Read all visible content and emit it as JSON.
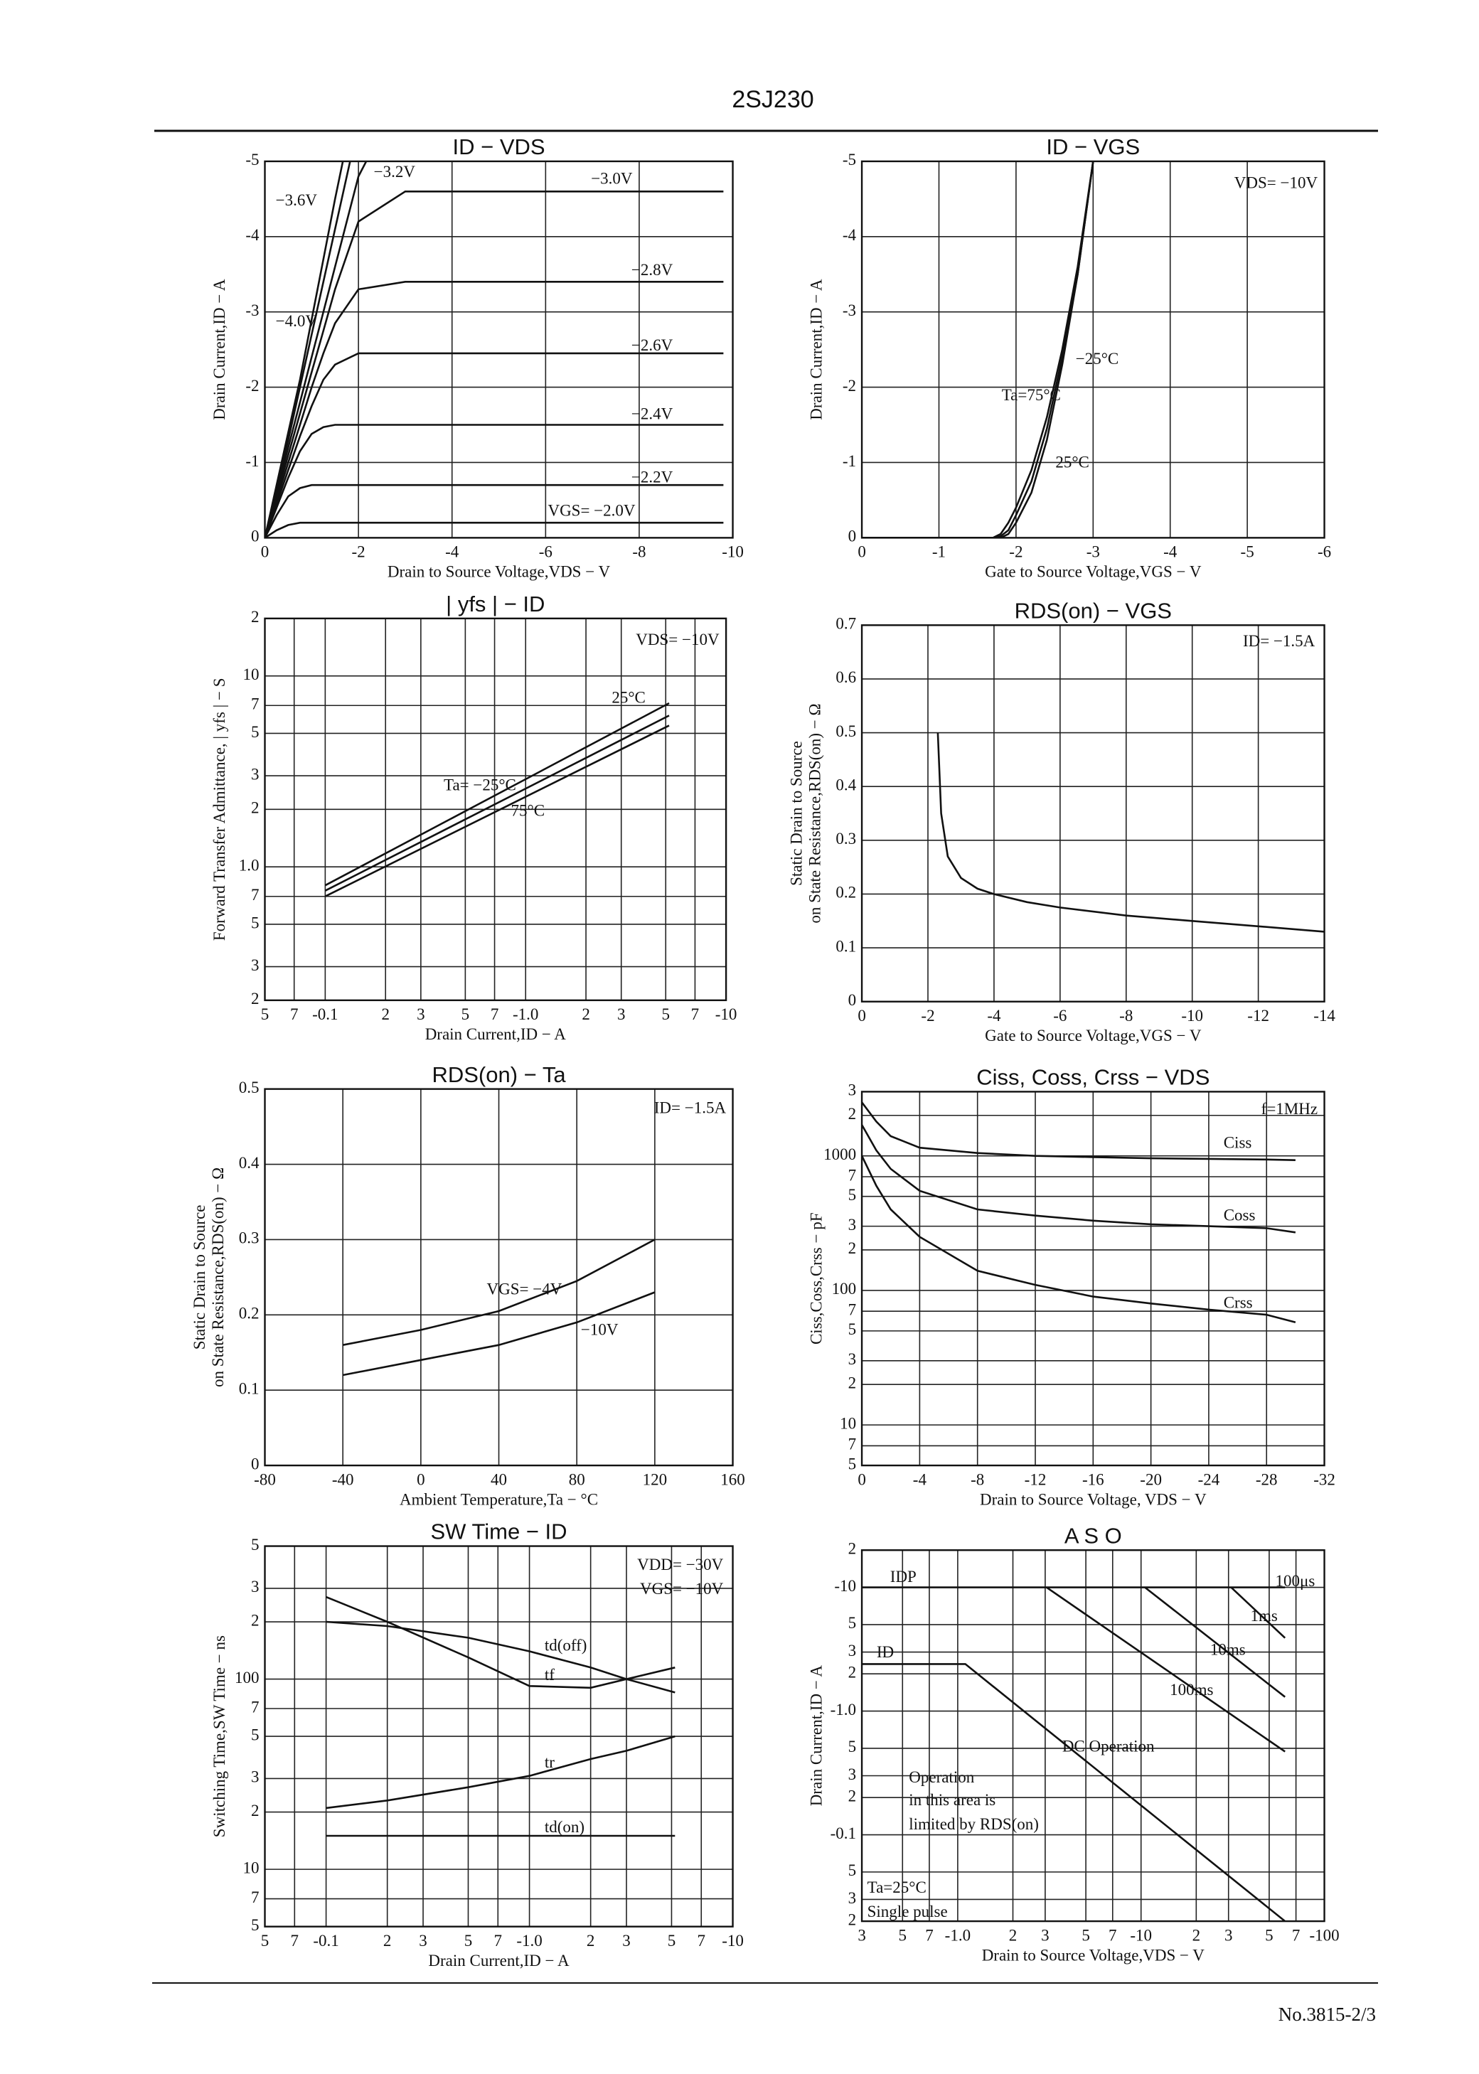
{
  "header": {
    "title": "2SJ230"
  },
  "footer": {
    "text": "No.3815-2/3"
  },
  "chart_data": [
    {
      "type": "line",
      "title": "ID − VDS",
      "xlabel": "Drain to Source Voltage,VDS − V",
      "ylabel": "Drain Current,ID − A",
      "xlim": [
        0,
        -10
      ],
      "ylim": [
        0,
        -5
      ],
      "xticks": [
        0,
        -2,
        -4,
        -6,
        -8,
        -10
      ],
      "yticks": [
        0,
        -1,
        -2,
        -3,
        -4,
        -5
      ],
      "grid": true,
      "x": [
        0,
        -0.25,
        -0.5,
        -0.75,
        -1,
        -1.25,
        -1.5,
        -2,
        -3,
        -4,
        -6,
        -8,
        -9.8
      ],
      "series": [
        {
          "name": "VGS= −2.0V",
          "color": "#111",
          "values": [
            0,
            -0.1,
            -0.17,
            -0.2,
            -0.2,
            -0.2,
            -0.2,
            -0.2,
            -0.2,
            -0.2,
            -0.2,
            -0.2,
            -0.2
          ]
        },
        {
          "name": "−2.2V",
          "color": "#111",
          "values": [
            0,
            -0.3,
            -0.55,
            -0.66,
            -0.7,
            -0.7,
            -0.7,
            -0.7,
            -0.7,
            -0.7,
            -0.7,
            -0.7,
            -0.7
          ]
        },
        {
          "name": "−2.4V",
          "color": "#111",
          "values": [
            0,
            -0.4,
            -0.8,
            -1.15,
            -1.38,
            -1.47,
            -1.5,
            -1.5,
            -1.5,
            -1.5,
            -1.5,
            -1.5,
            -1.5
          ]
        },
        {
          "name": "−2.6V",
          "color": "#111",
          "values": [
            0,
            -0.45,
            -0.9,
            -1.35,
            -1.75,
            -2.1,
            -2.3,
            -2.45,
            -2.45,
            -2.45,
            -2.45,
            -2.45,
            -2.45
          ]
        },
        {
          "name": "−2.8V",
          "color": "#111",
          "values": [
            0,
            -0.5,
            -1,
            -1.5,
            -2,
            -2.45,
            -2.85,
            -3.3,
            -3.4,
            -3.4,
            -3.4,
            -3.4,
            -3.4
          ]
        },
        {
          "name": "−3.0V",
          "color": "#111",
          "values": [
            0,
            -0.55,
            -1.1,
            -1.65,
            -2.2,
            -2.75,
            -3.3,
            -4.2,
            -4.6,
            -4.6,
            -4.6,
            -4.6,
            -4.6
          ]
        },
        {
          "name": "−3.2V",
          "color": "#111",
          "values": [
            0,
            -0.6,
            -1.2,
            -1.8,
            -2.4,
            -3,
            -3.6,
            -4.8,
            -6,
            null,
            null,
            null,
            null
          ]
        },
        {
          "name": "−3.6V",
          "color": "#111",
          "values": [
            0,
            -0.65,
            -1.3,
            -2,
            -2.7,
            -3.4,
            -4.1,
            -5.5,
            null,
            null,
            null,
            null,
            null
          ]
        },
        {
          "name": "−4.0V",
          "color": "#111",
          "values": [
            0,
            -0.7,
            -1.4,
            -2.1,
            -2.9,
            -3.7,
            -4.5,
            -6,
            null,
            null,
            null,
            null,
            null
          ]
        }
      ]
    },
    {
      "type": "line",
      "title": "ID − VGS",
      "xlabel": "Gate to Source Voltage,VGS − V",
      "ylabel": "Drain Current,ID − A",
      "xlim": [
        0,
        -6
      ],
      "ylim": [
        0,
        -5
      ],
      "xticks": [
        0,
        -1,
        -2,
        -3,
        -4,
        -5,
        -6
      ],
      "yticks": [
        0,
        -1,
        -2,
        -3,
        -4,
        -5
      ],
      "grid": true,
      "annotations": [
        "VDS= −10V"
      ],
      "x": [
        0,
        -1,
        -1.7,
        -1.8,
        -1.9,
        -2,
        -2.2,
        -2.4,
        -2.6,
        -2.8,
        -3
      ],
      "series": [
        {
          "name": "Ta=75°C",
          "color": "#111",
          "values": [
            0,
            0,
            0,
            -0.05,
            -0.2,
            -0.4,
            -0.9,
            -1.6,
            -2.5,
            -3.6,
            -5
          ]
        },
        {
          "name": "25°C",
          "color": "#111",
          "values": [
            0,
            0,
            0,
            -0.02,
            -0.1,
            -0.3,
            -0.75,
            -1.45,
            -2.4,
            -3.5,
            -5
          ]
        },
        {
          "name": "−25°C",
          "color": "#111",
          "values": [
            0,
            0,
            0,
            0,
            -0.05,
            -0.2,
            -0.6,
            -1.3,
            -2.3,
            -3.5,
            -5
          ]
        }
      ]
    },
    {
      "type": "line",
      "title": "| yfs | − ID",
      "xlabel": "Drain Current,ID − A",
      "ylabel": "Forward Transfer Admittance, | yfs | − S",
      "xlog": true,
      "ylog": true,
      "xlim": [
        -0.05,
        -10
      ],
      "ylim": [
        0.2,
        20
      ],
      "grid": true,
      "xticks": [
        {
          "value": -0.05,
          "label": "5"
        },
        {
          "value": -0.07,
          "label": "7"
        },
        -0.1,
        {
          "value": -0.2,
          "label": "2"
        },
        {
          "value": -0.3,
          "label": "3"
        },
        {
          "value": -0.5,
          "label": "5"
        },
        {
          "value": -0.7,
          "label": "7"
        },
        {
          "value": -1,
          "label": "-1.0"
        },
        {
          "value": -2,
          "label": "2"
        },
        {
          "value": -3,
          "label": "3"
        },
        {
          "value": -5,
          "label": "5"
        },
        {
          "value": -7,
          "label": "7"
        },
        -10
      ],
      "yticks": [
        {
          "value": 0.2,
          "label": "2"
        },
        {
          "value": 0.3,
          "label": "3"
        },
        {
          "value": 0.5,
          "label": "5"
        },
        {
          "value": 0.7,
          "label": "7"
        },
        {
          "value": 1,
          "label": "1.0"
        },
        2,
        3,
        5,
        7,
        10,
        {
          "value": 20,
          "label": "2"
        }
      ],
      "annotations": [
        "VDS= −10V"
      ],
      "x": [
        -0.1,
        -5.2
      ],
      "series": [
        {
          "name": "25°C",
          "color": "#111",
          "values": [
            0.8,
            7.2
          ]
        },
        {
          "name": "Ta= −25°C",
          "color": "#111",
          "values": [
            0.75,
            6.2
          ]
        },
        {
          "name": "75°C",
          "color": "#111",
          "values": [
            0.7,
            5.5
          ]
        }
      ]
    },
    {
      "type": "line",
      "title": "RDS(on) − VGS",
      "xlabel": "Gate to Source Voltage,VGS − V",
      "ylabel": [
        "Static Drain to Source",
        "on State Resistance,RDS(on) − Ω"
      ],
      "xlim": [
        0,
        -14
      ],
      "ylim": [
        0,
        0.7
      ],
      "xticks": [
        0,
        -2,
        -4,
        -6,
        -8,
        -10,
        -12,
        -14
      ],
      "yticks": [
        0,
        0.1,
        0.2,
        0.3,
        0.4,
        0.5,
        0.6,
        0.7
      ],
      "grid": true,
      "annotations": [
        "ID= −1.5A"
      ],
      "x": [
        -2.3,
        -2.4,
        -2.6,
        -3,
        -3.5,
        -4,
        -5,
        -6,
        -8,
        -10,
        -12,
        -14
      ],
      "series": [
        {
          "color": "#111",
          "values": [
            0.5,
            0.35,
            0.27,
            0.23,
            0.21,
            0.2,
            0.185,
            0.175,
            0.16,
            0.15,
            0.14,
            0.13
          ]
        }
      ]
    },
    {
      "type": "line",
      "title": "RDS(on) − Ta",
      "xlabel": "Ambient Temperature,Ta − °C",
      "ylabel": [
        "Static Drain to Source",
        "on State Resistance,RDS(on) − Ω"
      ],
      "xlim": [
        -80,
        160
      ],
      "ylim": [
        0,
        0.5
      ],
      "xticks": [
        -80,
        -40,
        0,
        40,
        80,
        120,
        160
      ],
      "yticks": [
        0,
        0.1,
        0.2,
        0.3,
        0.4,
        0.5
      ],
      "grid": true,
      "annotations": [
        "ID= −1.5A"
      ],
      "x": [
        -40,
        0,
        40,
        80,
        120
      ],
      "series": [
        {
          "name": "VGS= −4V",
          "color": "#111",
          "values": [
            0.16,
            0.18,
            0.205,
            0.245,
            0.3
          ]
        },
        {
          "name": "−10V",
          "color": "#111",
          "values": [
            0.12,
            0.14,
            0.16,
            0.19,
            0.23
          ]
        }
      ]
    },
    {
      "type": "line",
      "title": "Ciss, Coss, Crss − VDS",
      "xlabel": "Drain to Source Voltage, VDS − V",
      "ylabel": "Ciss,Coss,Crss − pF",
      "ylog": true,
      "xlim": [
        0,
        -32
      ],
      "ylim": [
        5,
        3000
      ],
      "xticks": [
        0,
        -4,
        -8,
        -12,
        -16,
        -20,
        -24,
        -28,
        -32
      ],
      "yticks": [
        5,
        7,
        10,
        {
          "value": 20,
          "label": "2"
        },
        {
          "value": 30,
          "label": "3"
        },
        {
          "value": 50,
          "label": "5"
        },
        {
          "value": 70,
          "label": "7"
        },
        100,
        {
          "value": 200,
          "label": "2"
        },
        {
          "value": 300,
          "label": "3"
        },
        {
          "value": 500,
          "label": "5"
        },
        {
          "value": 700,
          "label": "7"
        },
        1000,
        {
          "value": 2000,
          "label": "2"
        },
        {
          "value": 3000,
          "label": "3"
        }
      ],
      "grid": true,
      "annotations": [
        "f=1MHz"
      ],
      "x": [
        0,
        -1,
        -2,
        -4,
        -8,
        -12,
        -16,
        -20,
        -24,
        -28,
        -30
      ],
      "series": [
        {
          "name": "Ciss",
          "color": "#111",
          "values": [
            2500,
            1800,
            1400,
            1150,
            1050,
            1000,
            980,
            960,
            950,
            940,
            930
          ]
        },
        {
          "name": "Coss",
          "color": "#111",
          "values": [
            1700,
            1100,
            800,
            550,
            400,
            360,
            330,
            310,
            300,
            290,
            270
          ]
        },
        {
          "name": "Crss",
          "color": "#111",
          "values": [
            1000,
            600,
            400,
            250,
            140,
            110,
            90,
            80,
            72,
            66,
            58
          ]
        }
      ]
    },
    {
      "type": "line",
      "title": "SW Time − ID",
      "xlabel": "Drain Current,ID − A",
      "ylabel": "Switching Time,SW Time − ns",
      "xlog": true,
      "ylog": true,
      "xlim": [
        -0.05,
        -10
      ],
      "ylim": [
        5,
        500
      ],
      "grid": true,
      "xticks": [
        {
          "value": -0.05,
          "label": "5"
        },
        {
          "value": -0.07,
          "label": "7"
        },
        -0.1,
        {
          "value": -0.2,
          "label": "2"
        },
        {
          "value": -0.3,
          "label": "3"
        },
        {
          "value": -0.5,
          "label": "5"
        },
        {
          "value": -0.7,
          "label": "7"
        },
        {
          "value": -1,
          "label": "-1.0"
        },
        {
          "value": -2,
          "label": "2"
        },
        {
          "value": -3,
          "label": "3"
        },
        {
          "value": -5,
          "label": "5"
        },
        {
          "value": -7,
          "label": "7"
        },
        -10
      ],
      "yticks": [
        5,
        7,
        10,
        {
          "value": 20,
          "label": "2"
        },
        {
          "value": 30,
          "label": "3"
        },
        {
          "value": 50,
          "label": "5"
        },
        {
          "value": 70,
          "label": "7"
        },
        100,
        {
          "value": 200,
          "label": "2"
        },
        {
          "value": 300,
          "label": "3"
        },
        {
          "value": 500,
          "label": "5"
        }
      ],
      "annotations": [
        "VDD= −30V",
        "VGS= −10V"
      ],
      "x": [
        -0.1,
        -0.2,
        -0.5,
        -1,
        -2,
        -3,
        -5.2
      ],
      "series": [
        {
          "name": "td(off)",
          "color": "#111",
          "values": [
            200,
            190,
            165,
            140,
            115,
            100,
            85
          ]
        },
        {
          "name": "tf",
          "color": "#111",
          "values": [
            270,
            200,
            130,
            92,
            90,
            100,
            115
          ]
        },
        {
          "name": "tr",
          "color": "#111",
          "values": [
            21,
            23,
            27,
            31,
            38,
            42,
            50
          ]
        },
        {
          "name": "td(on)",
          "color": "#111",
          "values": [
            15,
            15,
            15,
            15,
            15,
            15,
            15
          ]
        }
      ]
    },
    {
      "type": "line",
      "title": "A S O",
      "xlabel": "Drain to Source Voltage,VDS − V",
      "ylabel": "Drain Current,ID − A",
      "xlog": true,
      "ylog": true,
      "xlim": [
        -0.3,
        -100
      ],
      "ylim": [
        -0.02,
        -20
      ],
      "grid": true,
      "xticks": [
        {
          "value": -0.3,
          "label": "3"
        },
        {
          "value": -0.5,
          "label": "5"
        },
        {
          "value": -0.7,
          "label": "7"
        },
        {
          "value": -1,
          "label": "-1.0"
        },
        {
          "value": -2,
          "label": "2"
        },
        {
          "value": -3,
          "label": "3"
        },
        {
          "value": -5,
          "label": "5"
        },
        {
          "value": -7,
          "label": "7"
        },
        -10,
        {
          "value": -20,
          "label": "2"
        },
        {
          "value": -30,
          "label": "3"
        },
        {
          "value": -50,
          "label": "5"
        },
        {
          "value": -70,
          "label": "7"
        },
        -100
      ],
      "yticks": [
        {
          "value": -0.02,
          "label": "2"
        },
        {
          "value": -0.03,
          "label": "3"
        },
        {
          "value": -0.05,
          "label": "5"
        },
        -0.1,
        {
          "value": -0.2,
          "label": "2"
        },
        {
          "value": -0.3,
          "label": "3"
        },
        {
          "value": -0.5,
          "label": "5"
        },
        {
          "value": -1,
          "label": "-1.0"
        },
        {
          "value": -2,
          "label": "2"
        },
        {
          "value": -3,
          "label": "3"
        },
        {
          "value": -5,
          "label": "5"
        },
        -10,
        {
          "value": -20,
          "label": "2"
        }
      ],
      "annotations": [
        "100μs",
        "ID",
        "Operation",
        "in this area is",
        "limited by RDS(on)",
        "Ta=25°C",
        "Single pulse"
      ],
      "series": [
        {
          "name": "IDP",
          "color": "#111",
          "x": [
            -0.3,
            -61
          ],
          "values": [
            -10,
            -10
          ]
        },
        {
          "name": "DC Operation",
          "color": "#111",
          "x": [
            -0.3,
            -1.1,
            -61
          ],
          "values": [
            -2.4,
            -2.4,
            -0.02
          ]
        },
        {
          "name": "100ms",
          "color": "#111",
          "x": [
            -3.05,
            -61
          ],
          "values": [
            -10,
            -0.47
          ]
        },
        {
          "name": "10ms",
          "color": "#111",
          "x": [
            -10.5,
            -61
          ],
          "values": [
            -10,
            -1.3
          ]
        },
        {
          "name": "1ms",
          "color": "#111",
          "x": [
            -31,
            -61
          ],
          "values": [
            -10,
            -3.9
          ]
        }
      ]
    }
  ]
}
